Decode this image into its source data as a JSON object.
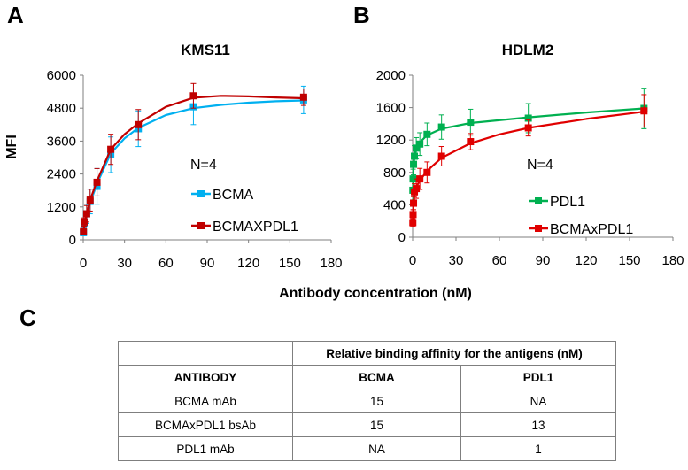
{
  "panels": {
    "a": "A",
    "b": "B",
    "c": "C"
  },
  "shared_xlabel": "Antibody concentration (nM)",
  "chart_data": [
    {
      "type": "line",
      "title": "KMS11",
      "xlabel": "",
      "ylabel": "MFI",
      "xlim": [
        0,
        180
      ],
      "ylim": [
        0,
        6000
      ],
      "xticks": [
        0,
        30,
        60,
        90,
        120,
        150,
        180
      ],
      "yticks": [
        0,
        1200,
        2400,
        3600,
        4800,
        6000
      ],
      "annotation": "N=4",
      "legend_position": "right-middle",
      "series": [
        {
          "name": "BCMA",
          "color": "#00b0f0",
          "marker": "square",
          "x": [
            0.16,
            0.63,
            2.5,
            5,
            10,
            20,
            40,
            80,
            160
          ],
          "y": [
            260,
            600,
            950,
            1400,
            1950,
            3100,
            4050,
            4850,
            5100
          ],
          "err": [
            80,
            150,
            350,
            450,
            650,
            650,
            650,
            650,
            500
          ],
          "fit": [
            [
              0.16,
              250
            ],
            [
              2.5,
              850
            ],
            [
              5,
              1350
            ],
            [
              10,
              2050
            ],
            [
              20,
              3150
            ],
            [
              30,
              3700
            ],
            [
              40,
              4080
            ],
            [
              60,
              4550
            ],
            [
              80,
              4800
            ],
            [
              100,
              4920
            ],
            [
              120,
              5000
            ],
            [
              140,
              5050
            ],
            [
              160,
              5080
            ]
          ]
        },
        {
          "name": "BCMAXPDL1",
          "color": "#c00000",
          "marker": "square",
          "x": [
            0.16,
            0.63,
            2.5,
            5,
            10,
            20,
            40,
            80,
            160
          ],
          "y": [
            300,
            650,
            950,
            1450,
            2100,
            3300,
            4200,
            5250,
            5200
          ],
          "err": [
            80,
            150,
            300,
            400,
            500,
            550,
            550,
            450,
            300
          ],
          "fit": [
            [
              0.16,
              300
            ],
            [
              2.5,
              950
            ],
            [
              5,
              1450
            ],
            [
              10,
              2150
            ],
            [
              20,
              3300
            ],
            [
              30,
              3850
            ],
            [
              40,
              4250
            ],
            [
              60,
              4850
            ],
            [
              80,
              5180
            ],
            [
              100,
              5250
            ],
            [
              120,
              5230
            ],
            [
              140,
              5190
            ],
            [
              160,
              5160
            ]
          ]
        }
      ]
    },
    {
      "type": "line",
      "title": "HDLM2",
      "xlabel": "",
      "ylabel": "",
      "xlim": [
        0,
        180
      ],
      "ylim": [
        0,
        2000
      ],
      "xticks": [
        0,
        30,
        60,
        90,
        120,
        150,
        180
      ],
      "yticks": [
        0,
        400,
        800,
        1200,
        1600,
        2000
      ],
      "annotation": "N=4",
      "legend_position": "right-middle",
      "series": [
        {
          "name": "PDL1",
          "color": "#00b050",
          "marker": "square",
          "x": [
            0.16,
            0.31,
            0.63,
            1.25,
            2.5,
            5,
            10,
            20,
            40,
            80,
            160
          ],
          "y": [
            580,
            720,
            900,
            1000,
            1100,
            1150,
            1270,
            1360,
            1420,
            1470,
            1590
          ],
          "err": [
            120,
            120,
            130,
            130,
            130,
            140,
            140,
            150,
            160,
            180,
            250
          ],
          "fit": [
            [
              0.16,
              550
            ],
            [
              0.63,
              880
            ],
            [
              1.25,
              990
            ],
            [
              2.5,
              1080
            ],
            [
              5,
              1170
            ],
            [
              10,
              1260
            ],
            [
              20,
              1340
            ],
            [
              40,
              1410
            ],
            [
              80,
              1480
            ],
            [
              120,
              1540
            ],
            [
              160,
              1590
            ]
          ]
        },
        {
          "name": "BCMAxPDL1",
          "color": "#e00000",
          "marker": "square",
          "x": [
            0.16,
            0.31,
            0.63,
            1.25,
            2.5,
            5,
            10,
            20,
            40,
            80,
            160
          ],
          "y": [
            180,
            280,
            420,
            560,
            600,
            720,
            800,
            1000,
            1180,
            1350,
            1560
          ],
          "err": [
            50,
            60,
            80,
            100,
            120,
            130,
            130,
            120,
            100,
            100,
            200
          ],
          "fit": [
            [
              0.16,
              170
            ],
            [
              0.63,
              400
            ],
            [
              1.25,
              520
            ],
            [
              2.5,
              620
            ],
            [
              5,
              700
            ],
            [
              10,
              820
            ],
            [
              20,
              980
            ],
            [
              40,
              1160
            ],
            [
              60,
              1270
            ],
            [
              80,
              1350
            ],
            [
              120,
              1460
            ],
            [
              160,
              1550
            ]
          ]
        }
      ]
    },
    {
      "type": "table",
      "header_span": "Relative binding affinity for the antigens (nM)",
      "columns": [
        "ANTIBODY",
        "BCMA",
        "PDL1"
      ],
      "rows": [
        [
          "BCMA mAb",
          "15",
          "NA"
        ],
        [
          "BCMAxPDL1 bsAb",
          "15",
          "13"
        ],
        [
          "PDL1 mAb",
          "NA",
          "1"
        ]
      ]
    }
  ]
}
